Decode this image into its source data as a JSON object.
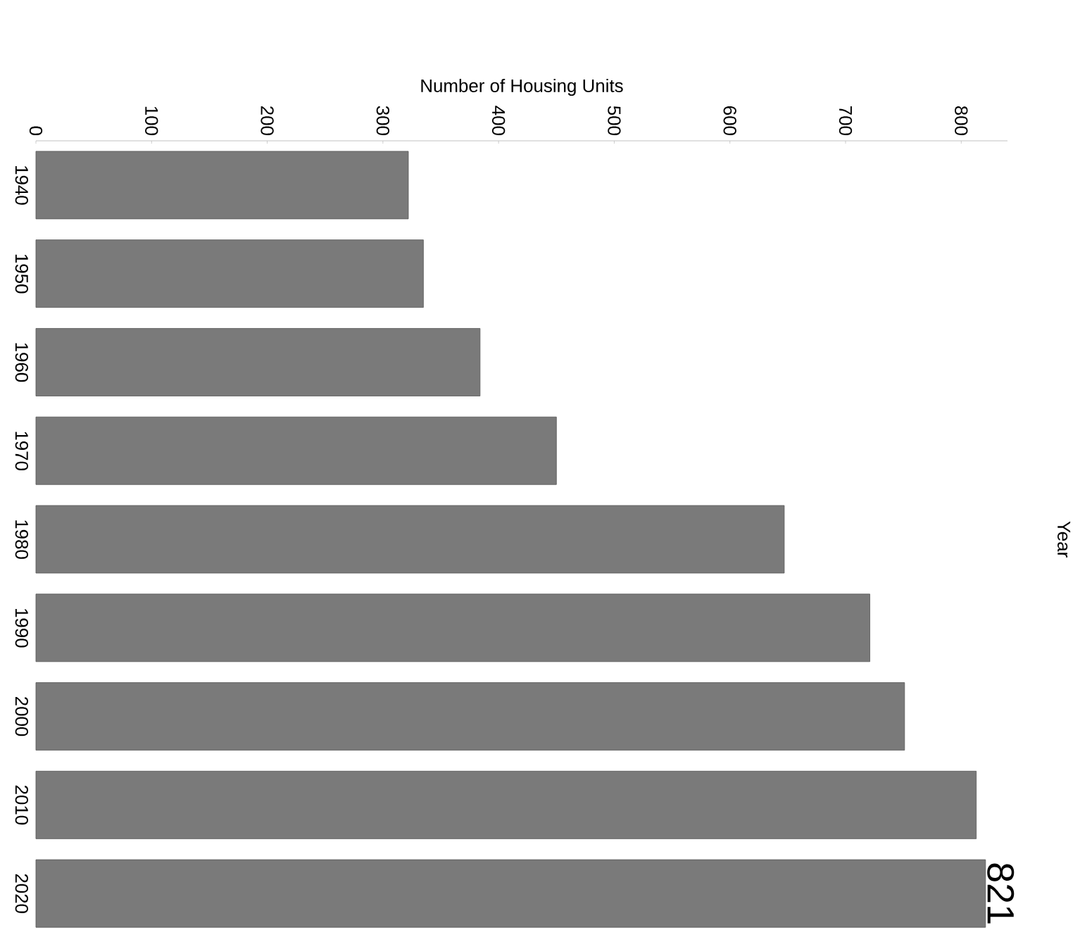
{
  "chart_data": {
    "type": "bar",
    "orientation": "horizontal",
    "xlabel": "Number of Housing Units",
    "ylabel": "Year",
    "categories": [
      "1940",
      "1950",
      "1960",
      "1970",
      "1980",
      "1990",
      "2000",
      "2010",
      "2020"
    ],
    "values": [
      322,
      335,
      384,
      450,
      647,
      721,
      751,
      813,
      821
    ],
    "value_labels": [
      null,
      null,
      null,
      null,
      null,
      null,
      null,
      null,
      "821"
    ],
    "color": "#7a7a7a",
    "xlim": [
      0,
      840
    ],
    "xticks": [
      0,
      100,
      200,
      300,
      400,
      500,
      600,
      700,
      800
    ]
  }
}
